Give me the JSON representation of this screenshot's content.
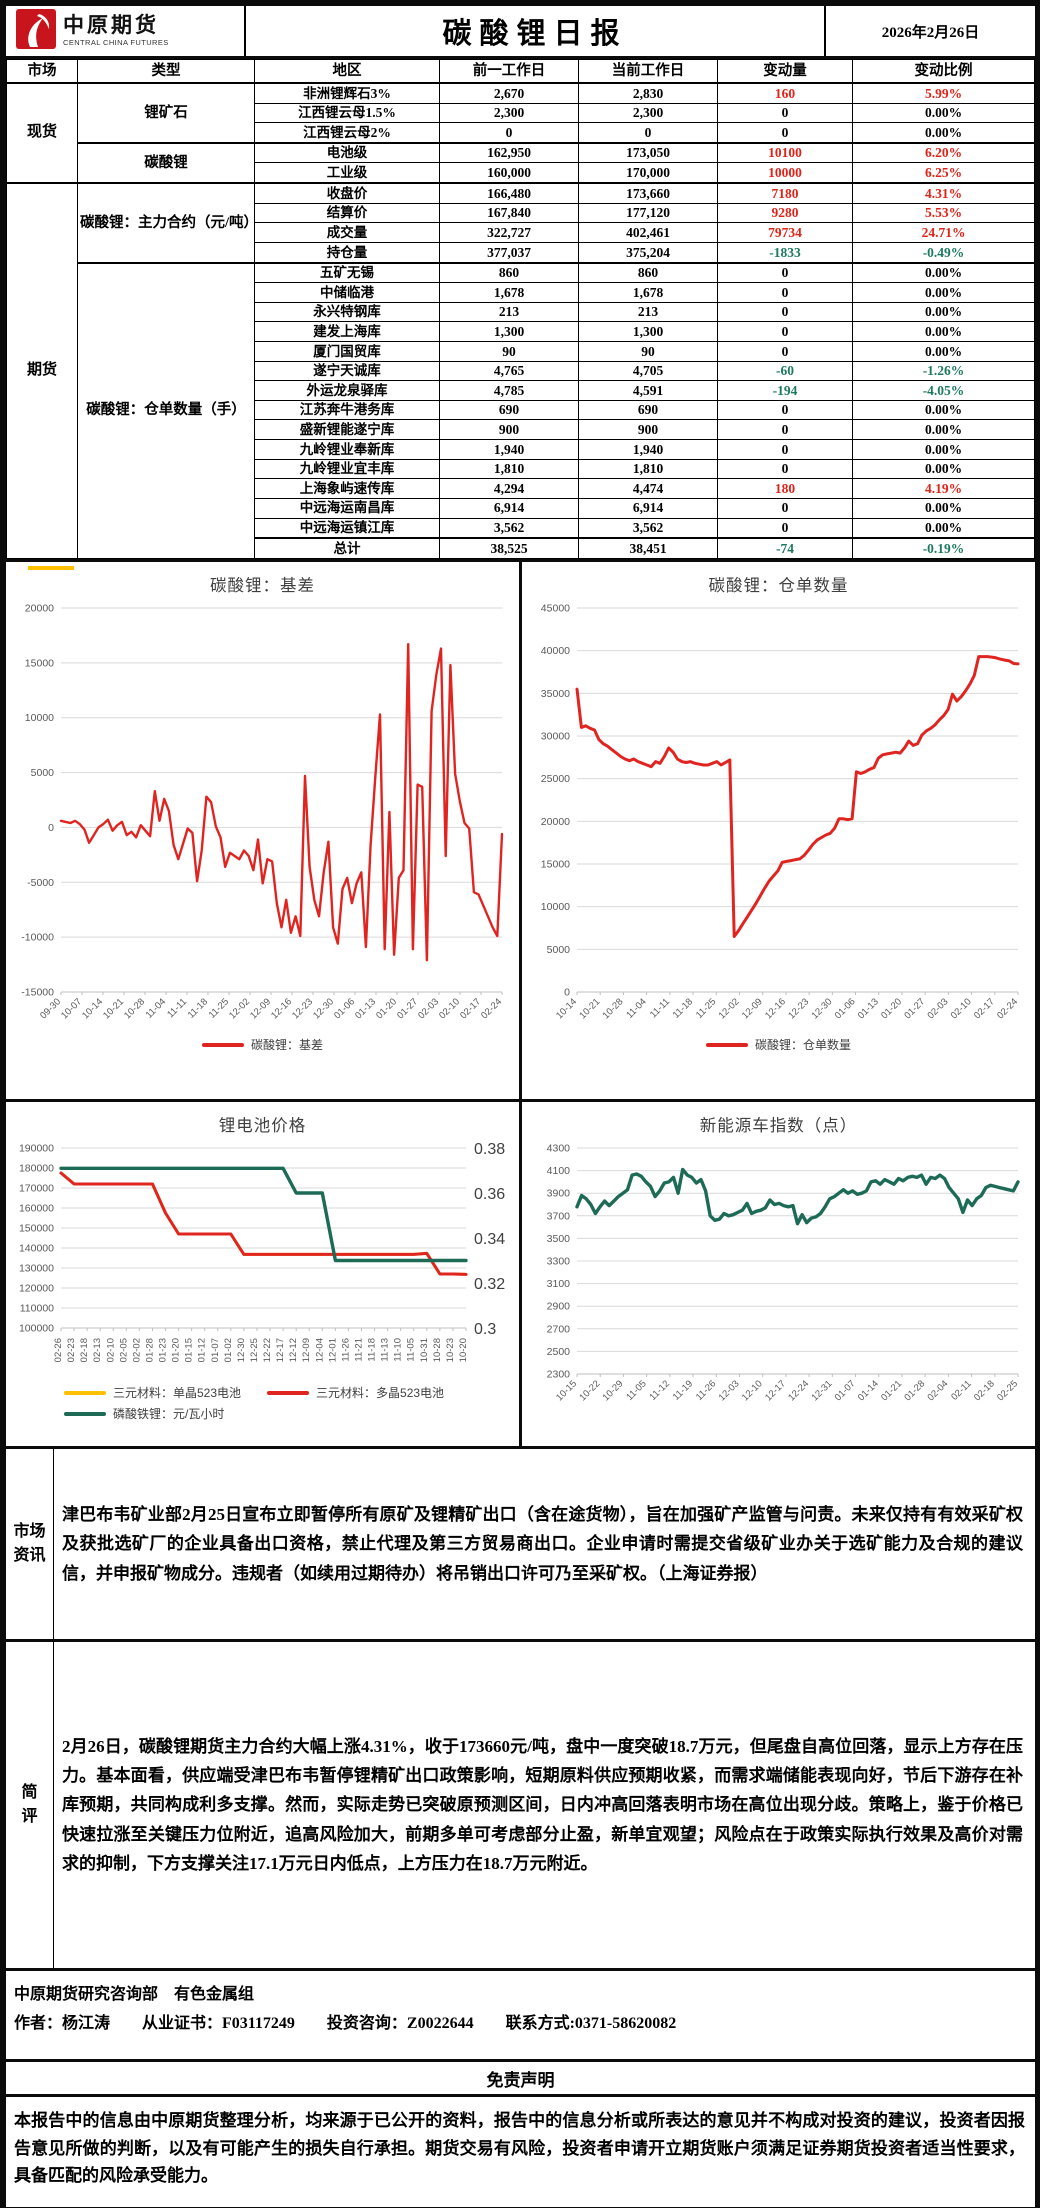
{
  "header": {
    "logo_cn": "中原期货",
    "logo_en": "CENTRAL CHINA FUTURES",
    "title": "碳酸锂日报",
    "date": "2026年2月26日"
  },
  "table": {
    "columns": [
      "市场",
      "类型",
      "地区",
      "前一工作日",
      "当前工作日",
      "变动量",
      "变动比例"
    ],
    "market_cells": [
      {
        "label": "现货",
        "rows": 5
      },
      {
        "label": "期货",
        "rows": 19
      }
    ],
    "type_cells": [
      {
        "label": "锂矿石",
        "rows": 3
      },
      {
        "label": "碳酸锂",
        "rows": 2
      },
      {
        "label": "碳酸锂：主力合约（元/吨）",
        "rows": 4
      },
      {
        "label": "碳酸锂：仓单数量（手）",
        "rows": 15
      }
    ],
    "colors": {
      "up": "#e02318",
      "down": "#1d7a5f",
      "flat": "#000000"
    },
    "rows": [
      {
        "region": "非洲锂辉石3%",
        "prev": "2,670",
        "curr": "2,830",
        "chg": "160",
        "pct": "5.99%",
        "dir": "up"
      },
      {
        "region": "江西锂云母1.5%",
        "prev": "2,300",
        "curr": "2,300",
        "chg": "0",
        "pct": "0.00%",
        "dir": "flat"
      },
      {
        "region": "江西锂云母2%",
        "prev": "0",
        "curr": "0",
        "chg": "0",
        "pct": "0.00%",
        "dir": "flat"
      },
      {
        "region": "电池级",
        "prev": "162,950",
        "curr": "173,050",
        "chg": "10100",
        "pct": "6.20%",
        "dir": "up",
        "grp": true
      },
      {
        "region": "工业级",
        "prev": "160,000",
        "curr": "170,000",
        "chg": "10000",
        "pct": "6.25%",
        "dir": "up"
      },
      {
        "region": "收盘价",
        "prev": "166,480",
        "curr": "173,660",
        "chg": "7180",
        "pct": "4.31%",
        "dir": "up",
        "grp": true
      },
      {
        "region": "结算价",
        "prev": "167,840",
        "curr": "177,120",
        "chg": "9280",
        "pct": "5.53%",
        "dir": "up"
      },
      {
        "region": "成交量",
        "prev": "322,727",
        "curr": "402,461",
        "chg": "79734",
        "pct": "24.71%",
        "dir": "up"
      },
      {
        "region": "持仓量",
        "prev": "377,037",
        "curr": "375,204",
        "chg": "-1833",
        "pct": "-0.49%",
        "dir": "down"
      },
      {
        "region": "五矿无锡",
        "prev": "860",
        "curr": "860",
        "chg": "0",
        "pct": "0.00%",
        "dir": "flat",
        "grp": true
      },
      {
        "region": "中储临港",
        "prev": "1,678",
        "curr": "1,678",
        "chg": "0",
        "pct": "0.00%",
        "dir": "flat"
      },
      {
        "region": "永兴特钢库",
        "prev": "213",
        "curr": "213",
        "chg": "0",
        "pct": "0.00%",
        "dir": "flat"
      },
      {
        "region": "建发上海库",
        "prev": "1,300",
        "curr": "1,300",
        "chg": "0",
        "pct": "0.00%",
        "dir": "flat"
      },
      {
        "region": "厦门国贸库",
        "prev": "90",
        "curr": "90",
        "chg": "0",
        "pct": "0.00%",
        "dir": "flat"
      },
      {
        "region": "遂宁天诚库",
        "prev": "4,765",
        "curr": "4,705",
        "chg": "-60",
        "pct": "-1.26%",
        "dir": "down"
      },
      {
        "region": "外运龙泉驿库",
        "prev": "4,785",
        "curr": "4,591",
        "chg": "-194",
        "pct": "-4.05%",
        "dir": "down"
      },
      {
        "region": "江苏奔牛港务库",
        "prev": "690",
        "curr": "690",
        "chg": "0",
        "pct": "0.00%",
        "dir": "flat"
      },
      {
        "region": "盛新锂能遂宁库",
        "prev": "900",
        "curr": "900",
        "chg": "0",
        "pct": "0.00%",
        "dir": "flat"
      },
      {
        "region": "九岭锂业奉新库",
        "prev": "1,940",
        "curr": "1,940",
        "chg": "0",
        "pct": "0.00%",
        "dir": "flat"
      },
      {
        "region": "九岭锂业宜丰库",
        "prev": "1,810",
        "curr": "1,810",
        "chg": "0",
        "pct": "0.00%",
        "dir": "flat"
      },
      {
        "region": "上海象屿速传库",
        "prev": "4,294",
        "curr": "4,474",
        "chg": "180",
        "pct": "4.19%",
        "dir": "up"
      },
      {
        "region": "中远海运南昌库",
        "prev": "6,914",
        "curr": "6,914",
        "chg": "0",
        "pct": "0.00%",
        "dir": "flat"
      },
      {
        "region": "中远海运镇江库",
        "prev": "3,562",
        "curr": "3,562",
        "chg": "0",
        "pct": "0.00%",
        "dir": "flat"
      },
      {
        "region": "总计",
        "prev": "38,525",
        "curr": "38,451",
        "chg": "-74",
        "pct": "-0.19%",
        "dir": "down",
        "grp": true
      }
    ]
  },
  "chart_data": [
    {
      "type": "line",
      "title": "碳酸锂：基差",
      "x_labels": [
        "09-30",
        "10-07",
        "10-14",
        "10-21",
        "10-28",
        "11-04",
        "11-11",
        "11-18",
        "11-25",
        "12-02",
        "12-09",
        "12-16",
        "12-23",
        "12-30",
        "01-06",
        "01-13",
        "01-20",
        "01-27",
        "02-03",
        "02-10",
        "02-17",
        "02-24"
      ],
      "x_rotate": 45,
      "ylim": [
        -15000,
        20000
      ],
      "ystep": 5000,
      "grid": true,
      "legend_position": "bottom",
      "series": [
        {
          "name": "碳酸锂：基差",
          "color": "#e02420",
          "width": 2.4,
          "axis": "left",
          "values": [
            600,
            500,
            400,
            600,
            300,
            -200,
            -1400,
            -700,
            0,
            300,
            700,
            -300,
            200,
            500,
            -700,
            -400,
            -900,
            200,
            -300,
            -800,
            3300,
            600,
            2600,
            1500,
            -1600,
            -2900,
            -1500,
            -100,
            -500,
            -4900,
            -2100,
            2800,
            2300,
            100,
            -900,
            -3600,
            -2300,
            -2600,
            -2900,
            -2100,
            -2600,
            -3900,
            -1100,
            -5100,
            -2900,
            -3100,
            -6900,
            -9100,
            -6600,
            -9600,
            -8100,
            -9900,
            4700,
            -3600,
            -6600,
            -8100,
            -4100,
            -1300,
            -9100,
            -10600,
            -5600,
            -4600,
            -6900,
            -5100,
            -4100,
            -10900,
            -1600,
            4600,
            10300,
            -11100,
            1400,
            -11600,
            -4600,
            -3900,
            16700,
            -11100,
            3900,
            3700,
            -12100,
            10600,
            13900,
            16300,
            -2600,
            14800,
            4900,
            2400,
            400,
            -100,
            -5900,
            -6100,
            -7100,
            -8100,
            -9100,
            -9900,
            -600
          ]
        }
      ]
    },
    {
      "type": "line",
      "title": "碳酸锂：仓单数量",
      "x_labels": [
        "10-14",
        "10-21",
        "10-28",
        "11-04",
        "11-11",
        "11-18",
        "11-25",
        "12-02",
        "12-09",
        "12-16",
        "12-23",
        "12-30",
        "01-06",
        "01-13",
        "01-20",
        "01-27",
        "02-03",
        "02-10",
        "02-17",
        "02-24"
      ],
      "x_rotate": 45,
      "ylim": [
        0,
        45000
      ],
      "ystep": 5000,
      "grid": true,
      "legend_position": "bottom",
      "series": [
        {
          "name": "碳酸锂：仓单数量",
          "color": "#e02420",
          "width": 3,
          "axis": "left",
          "values": [
            35500,
            31000,
            31200,
            30900,
            30700,
            29600,
            29100,
            28800,
            28400,
            28000,
            27600,
            27300,
            27100,
            27300,
            27000,
            26800,
            26600,
            26400,
            27000,
            26800,
            27600,
            28600,
            28100,
            27300,
            27000,
            26900,
            27000,
            26800,
            26700,
            26600,
            26600,
            26800,
            27000,
            26600,
            26900,
            27200,
            6500,
            7200,
            8000,
            8800,
            9600,
            10400,
            11300,
            12200,
            13000,
            13600,
            14200,
            15200,
            15300,
            15400,
            15500,
            15600,
            16000,
            16600,
            17300,
            17800,
            18100,
            18400,
            18600,
            19200,
            20300,
            20300,
            20200,
            20300,
            25800,
            25600,
            25800,
            26100,
            26300,
            27400,
            27800,
            27900,
            28000,
            28100,
            28000,
            28600,
            29400,
            28900,
            29100,
            30100,
            30600,
            30900,
            31300,
            31900,
            32400,
            33100,
            34900,
            34100,
            34600,
            35300,
            36100,
            37100,
            39300,
            39300,
            39300,
            39250,
            39150,
            39000,
            38900,
            38800,
            38500,
            38450
          ]
        }
      ]
    },
    {
      "type": "line",
      "title": "锂电池价格",
      "x_labels": [
        "02-26",
        "02-23",
        "02-18",
        "02-13",
        "02-10",
        "02-05",
        "02-02",
        "01-28",
        "01-23",
        "01-20",
        "01-15",
        "01-12",
        "01-07",
        "01-02",
        "12-30",
        "12-25",
        "12-22",
        "12-17",
        "12-12",
        "12-09",
        "12-04",
        "12-01",
        "11-26",
        "11-21",
        "11-18",
        "11-13",
        "11-10",
        "11-05",
        "10-31",
        "10-28",
        "10-23",
        "10-20"
      ],
      "x_rotate": 90,
      "x_reversed": true,
      "ylim": [
        100000,
        190000
      ],
      "ystep": 10000,
      "y2lim": [
        0.3,
        0.38
      ],
      "y2step": 0.02,
      "grid": true,
      "legend_position": "bottom-left",
      "series": [
        {
          "name": "三元材料：单晶523电池",
          "color": "#FFC000",
          "width": 3,
          "axis": "left",
          "values": [
            177500,
            172000,
            172000,
            172000,
            172000,
            172000,
            172000,
            172000,
            157500,
            147000,
            147000,
            147000,
            147000,
            147000,
            136800,
            136800,
            136800,
            136800,
            136800,
            136800,
            136800,
            136800,
            136800,
            136800,
            136800,
            136800,
            136800,
            136800,
            137300,
            127000,
            127000,
            126800
          ]
        },
        {
          "name": "三元材料：多晶523电池",
          "color": "#e02420",
          "width": 3,
          "axis": "left",
          "values": [
            177500,
            172000,
            172000,
            172000,
            172000,
            172000,
            172000,
            172000,
            157500,
            147000,
            147000,
            147000,
            147000,
            147000,
            136800,
            136800,
            136800,
            136800,
            136800,
            136800,
            136800,
            136800,
            136800,
            136800,
            136800,
            136800,
            136800,
            136800,
            137300,
            127000,
            127000,
            126800
          ]
        },
        {
          "name": "磷酸铁锂：元/瓦小时",
          "color": "#1d6b57",
          "width": 3.4,
          "axis": "right",
          "values": [
            0.371,
            0.371,
            0.371,
            0.371,
            0.371,
            0.371,
            0.371,
            0.371,
            0.371,
            0.371,
            0.371,
            0.371,
            0.371,
            0.371,
            0.371,
            0.371,
            0.371,
            0.371,
            0.36,
            0.36,
            0.36,
            0.33,
            0.33,
            0.33,
            0.33,
            0.33,
            0.33,
            0.33,
            0.33,
            0.33,
            0.33,
            0.33
          ]
        }
      ]
    },
    {
      "type": "line",
      "title": "新能源车指数（点）",
      "x_labels": [
        "10-15",
        "10-22",
        "10-29",
        "11-05",
        "11-12",
        "11-19",
        "11-26",
        "12-03",
        "12-10",
        "12-17",
        "12-24",
        "12-31",
        "01-07",
        "01-14",
        "01-21",
        "01-28",
        "02-04",
        "02-11",
        "02-18",
        "02-25"
      ],
      "x_rotate": 45,
      "ylim": [
        2300,
        4300
      ],
      "ystep": 200,
      "grid": true,
      "legend_position": "none",
      "series": [
        {
          "name": "新能源车指数",
          "color": "#1d6b57",
          "width": 3.4,
          "axis": "left",
          "values": [
            3780,
            3880,
            3850,
            3800,
            3720,
            3780,
            3830,
            3790,
            3830,
            3870,
            3900,
            3930,
            4060,
            4070,
            4050,
            4000,
            3960,
            3870,
            3920,
            3990,
            4000,
            4040,
            3900,
            4110,
            4060,
            4040,
            3990,
            4020,
            3920,
            3700,
            3660,
            3670,
            3720,
            3700,
            3710,
            3730,
            3750,
            3810,
            3720,
            3740,
            3750,
            3770,
            3840,
            3800,
            3810,
            3790,
            3780,
            3790,
            3630,
            3710,
            3640,
            3680,
            3690,
            3720,
            3780,
            3850,
            3870,
            3900,
            3930,
            3900,
            3920,
            3890,
            3900,
            3920,
            4000,
            4010,
            3980,
            4020,
            4000,
            3980,
            4030,
            4010,
            4040,
            4050,
            4040,
            4060,
            3980,
            4040,
            4030,
            4060,
            4030,
            3950,
            3900,
            3850,
            3730,
            3840,
            3790,
            3850,
            3880,
            3950,
            3970,
            3960,
            3950,
            3940,
            3930,
            3920,
            4000
          ]
        }
      ]
    }
  ],
  "news": {
    "label": "市场资讯",
    "text": "津巴布韦矿业部2月25日宣布立即暂停所有原矿及锂精矿出口（含在途货物），旨在加强矿产监管与问责。未来仅持有有效采矿权及获批选矿厂的企业具备出口资格，禁止代理及第三方贸易商出口。企业申请时需提交省级矿业办关于选矿能力及合规的建议信，并申报矿物成分。违规者（如续用过期待办）将吊销出口许可乃至采矿权。（上海证券报）"
  },
  "comment": {
    "label": "简评",
    "text": "2月26日，碳酸锂期货主力合约大幅上涨4.31%，收于173660元/吨，盘中一度突破18.7万元，但尾盘自高位回落，显示上方存在压力。基本面看，供应端受津巴布韦暂停锂精矿出口政策影响，短期原料供应预期收紧，而需求端储能表现向好，节后下游存在补库预期，共同构成利多支撑。然而，实际走势已突破原预测区间，日内冲高回落表明市场在高位出现分歧。策略上，鉴于价格已快速拉涨至关键压力位附近，追高风险加大，前期多单可考虑部分止盈，新单宜观望；风险点在于政策实际执行效果及高价对需求的抑制，下方支撑关注17.1万元日内低点，上方压力在18.7万元附近。"
  },
  "footer": {
    "dept": "中原期货研究咨询部　有色金属组",
    "author_line": "作者：杨江涛　　从业证书：F03117249　　投资咨询：Z0022644　　联系方式:0371-58620082"
  },
  "disclaimer": {
    "title": "免责声明",
    "text": "本报告中的信息由中原期货整理分析，均来源于已公开的资料，报告中的信息分析或所表达的意见并不构成对投资的建议，投资者因报告意见所做的判断，以及有可能产生的损失自行承担。期货交易有风险，投资者申请开立期货账户须满足证券期货投资者适当性要求，具备匹配的风险承受能力。"
  }
}
